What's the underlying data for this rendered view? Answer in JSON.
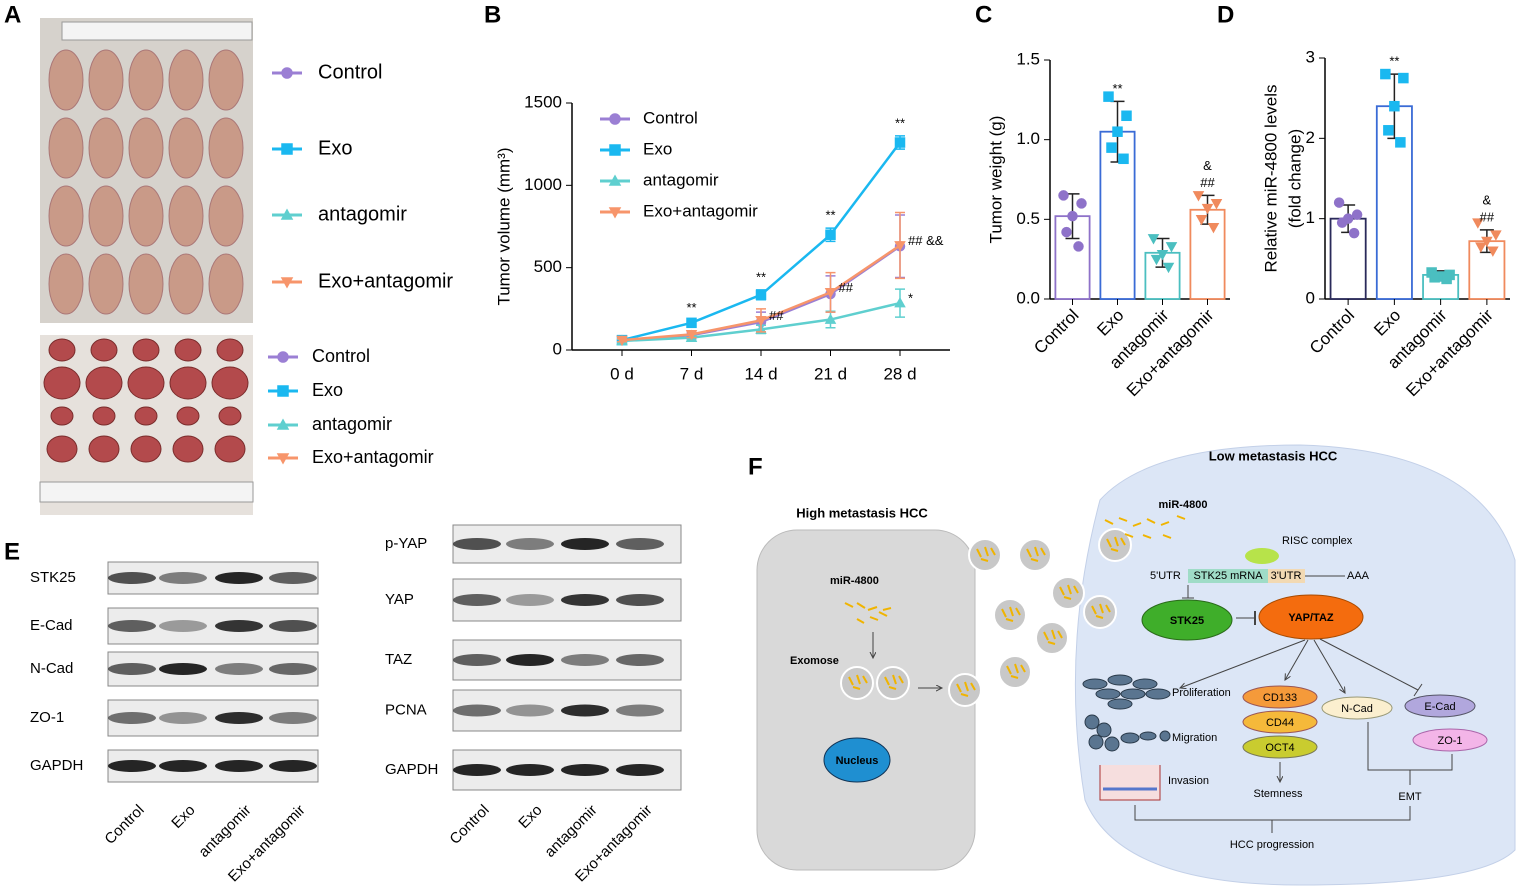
{
  "panel_labels": [
    "A",
    "B",
    "C",
    "D",
    "E",
    "F"
  ],
  "panel_a": {
    "legend_top": [
      "Control",
      "Exo",
      "antagomir",
      "Exo+antagomir"
    ],
    "legend_bottom": [
      "Control",
      "Exo",
      "antagomir",
      "Exo+antagomir"
    ]
  },
  "chart_data": [
    {
      "type": "line",
      "y_label": "Tumor volume (mm³)",
      "categories": [
        "0 d",
        "7 d",
        "14 d",
        "21 d",
        "28 d"
      ],
      "ylim": [
        0,
        1500
      ],
      "yticks": [
        0,
        500,
        1000,
        1500
      ],
      "series": [
        {
          "name": "Control",
          "color": "#9b7fd4",
          "marker": "circle",
          "values": [
            60,
            90,
            170,
            340,
            630
          ],
          "errors": [
            10,
            20,
            60,
            110,
            190
          ],
          "annotations": [
            null,
            null,
            null,
            null,
            null
          ]
        },
        {
          "name": "Exo",
          "color": "#1ab8f0",
          "marker": "square",
          "values": [
            60,
            165,
            335,
            700,
            1260
          ],
          "errors": [
            10,
            15,
            30,
            40,
            40
          ],
          "annotations": [
            null,
            "**",
            "**",
            "**",
            "**"
          ]
        },
        {
          "name": "antagomir",
          "color": "#5fcfcf",
          "marker": "triangle-up",
          "values": [
            55,
            75,
            125,
            185,
            285
          ],
          "errors": [
            10,
            15,
            25,
            50,
            85
          ],
          "annotations": [
            null,
            null,
            null,
            null,
            "*"
          ]
        },
        {
          "name": "Exo+antagomir",
          "color": "#f7956b",
          "marker": "triangle-down",
          "values": [
            60,
            95,
            180,
            350,
            635
          ],
          "errors": [
            10,
            20,
            70,
            120,
            200
          ],
          "annotations": [
            null,
            null,
            "##",
            "##",
            "##   &&"
          ]
        }
      ]
    },
    {
      "type": "bar",
      "y_label": "Tumor weight (g)",
      "categories": [
        "Control",
        "Exo",
        "antagomir",
        "Exo+antagomir"
      ],
      "ylim": [
        0,
        1.5
      ],
      "yticks": [
        {
          "value": 0,
          "label": "0.0"
        },
        {
          "value": 0.5,
          "label": "0.5"
        },
        {
          "value": 1,
          "label": "1.0"
        },
        {
          "value": 1.5,
          "label": "1.5"
        }
      ],
      "colors": [
        "#8e72c9",
        "#3a6bd6",
        "#4bbfc0",
        "#f08a5d"
      ],
      "point_colors": [
        "#8e72c9",
        "#1ab8f0",
        "#4bbfc0",
        "#f08a5d"
      ],
      "markers": [
        "circle",
        "square",
        "triangle-down",
        "triangle-down"
      ],
      "values": [
        0.52,
        1.05,
        0.29,
        0.56
      ],
      "errors": [
        0.14,
        0.19,
        0.09,
        0.09
      ],
      "points": [
        [
          0.65,
          0.6,
          0.52,
          0.42,
          0.33
        ],
        [
          1.27,
          1.15,
          1.05,
          0.95,
          0.88
        ],
        [
          0.38,
          0.33,
          0.28,
          0.25,
          0.2
        ],
        [
          0.65,
          0.6,
          0.57,
          0.5,
          0.45
        ]
      ],
      "annotations": [
        null,
        [
          "**"
        ],
        null,
        [
          "&",
          "##"
        ]
      ]
    },
    {
      "type": "bar",
      "y_label": [
        "Relative miR-4800 levels",
        "(fold change)"
      ],
      "categories": [
        "Control",
        "Exo",
        "antagomir",
        "Exo+antagomir"
      ],
      "ylim": [
        0,
        3
      ],
      "yticks": [
        0,
        1,
        2,
        3
      ],
      "colors": [
        "#2a2a5a",
        "#3a6bd6",
        "#4bbfc0",
        "#f08a5d"
      ],
      "point_colors": [
        "#8e72c9",
        "#1ab8f0",
        "#4bbfc0",
        "#f08a5d"
      ],
      "markers": [
        "circle",
        "square",
        "square",
        "triangle-down"
      ],
      "values": [
        1.0,
        2.4,
        0.3,
        0.72
      ],
      "errors": [
        0.17,
        0.4,
        0.05,
        0.14
      ],
      "points": [
        [
          1.2,
          1.05,
          1.0,
          0.95,
          0.82
        ],
        [
          2.8,
          2.75,
          2.4,
          2.1,
          1.95
        ],
        [
          0.33,
          0.3,
          0.28,
          0.27,
          0.25
        ],
        [
          0.95,
          0.8,
          0.72,
          0.65,
          0.6
        ]
      ],
      "annotations": [
        null,
        [
          "**"
        ],
        null,
        [
          "&",
          "##"
        ]
      ]
    }
  ],
  "panel_e": {
    "left": {
      "rows": [
        "STK25",
        "E-Cad",
        "N-Cad",
        "ZO-1",
        "GAPDH"
      ],
      "lanes": [
        "Control",
        "Exo",
        "antagomir",
        "Exo+antagomir"
      ]
    },
    "right": {
      "rows": [
        "p-YAP",
        "YAP",
        "TAZ",
        "PCNA",
        "GAPDH"
      ],
      "lanes": [
        "Control",
        "Exo",
        "antagomir",
        "Exo+antagomir"
      ]
    }
  },
  "panel_f": {
    "high_title": "High metastasis HCC",
    "high_mir": "miR-4800",
    "exomose": "Exomose",
    "nucleus": "Nucleus",
    "low_title": "Low metastasis HCC",
    "low_mir": "miR-4800",
    "risc": "RISC complex",
    "utr5": "5'UTR",
    "mrna": "STK25 mRNA",
    "utr3": "3'UTR",
    "polya": "AAA",
    "stk25": "STK25",
    "yaptaz": "YAP/TAZ",
    "proliferation": "Proliferation",
    "migration": "Migration",
    "invasion": "Invasion",
    "cd133": "CD133",
    "cd44": "CD44",
    "oct4": "OCT4",
    "stemness": "Stemness",
    "ncad": "N-Cad",
    "ecad": "E-Cad",
    "zo1": "ZO-1",
    "emt": "EMT",
    "progression": "HCC progression"
  }
}
